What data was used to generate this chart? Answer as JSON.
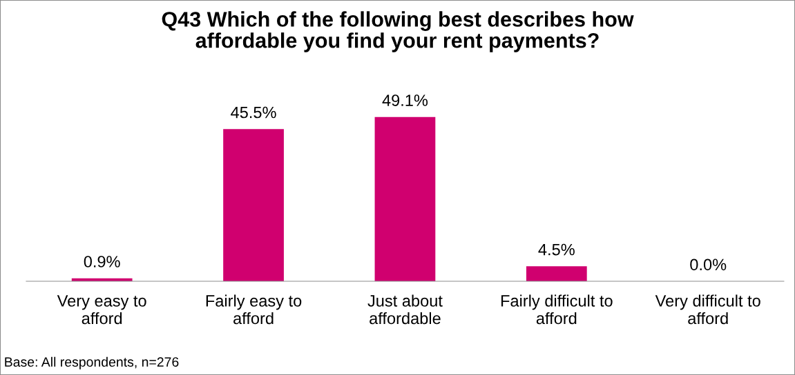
{
  "chart_data": {
    "type": "bar",
    "title": "Q43 Which of the following best describes how\naffordable you find your rent payments?",
    "categories": [
      "Very easy to\nafford",
      "Fairly easy to\nafford",
      "Just about\naffordable",
      "Fairly difficult to\nafford",
      "Very difficult to\nafford"
    ],
    "values": [
      0.9,
      45.5,
      49.1,
      4.5,
      0.0
    ],
    "value_labels": [
      "0.9%",
      "45.5%",
      "49.1%",
      "4.5%",
      "0.0%"
    ],
    "color": "#d0006f",
    "relative": false,
    "grid": false,
    "legend": false,
    "annotations": [
      "Base: All respondents, n=276"
    ]
  }
}
